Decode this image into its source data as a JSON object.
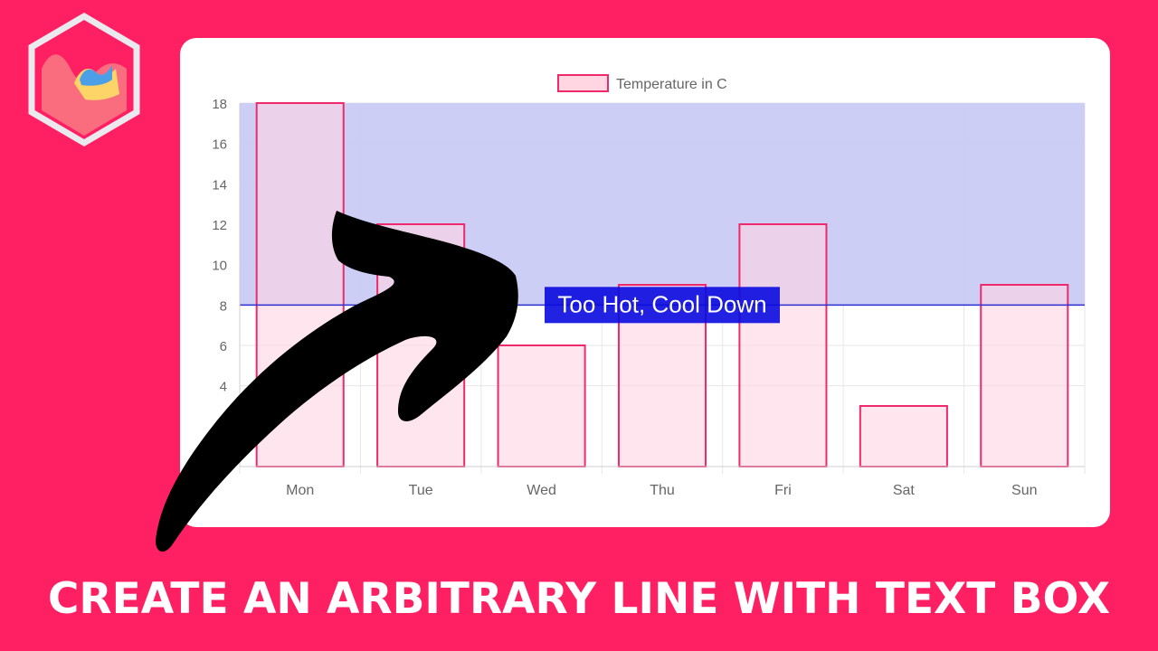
{
  "banner": {
    "title": "CREATE AN ARBITRARY LINE WITH TEXT BOX"
  },
  "colors": {
    "background": "#ff1f63",
    "bar_fill": "#ffd6e2",
    "bar_border": "#ee2a6b",
    "region_fill": "#c9cbf5",
    "annotation_line": "#2c2fcf",
    "annotation_box": "#0a0adf",
    "arrow": "#000000"
  },
  "icons": {
    "logo": "chartjs-logo-icon",
    "arrow": "curved-arrow-icon"
  },
  "chart_data": {
    "type": "bar",
    "categories": [
      "Mon",
      "Tue",
      "Wed",
      "Thu",
      "Fri",
      "Sat",
      "Sun"
    ],
    "series": [
      {
        "name": "Temperature in C",
        "values": [
          18,
          12,
          6,
          9,
          12,
          3,
          9
        ]
      }
    ],
    "ylim": [
      0,
      18
    ],
    "yticks": [
      4,
      6,
      8,
      10,
      12,
      14,
      16,
      18
    ],
    "grid": true,
    "legend": "top-center",
    "annotation": {
      "type": "line-with-box-region",
      "y": 8,
      "region": [
        8,
        18
      ],
      "label": "Too Hot, Cool Down"
    }
  }
}
